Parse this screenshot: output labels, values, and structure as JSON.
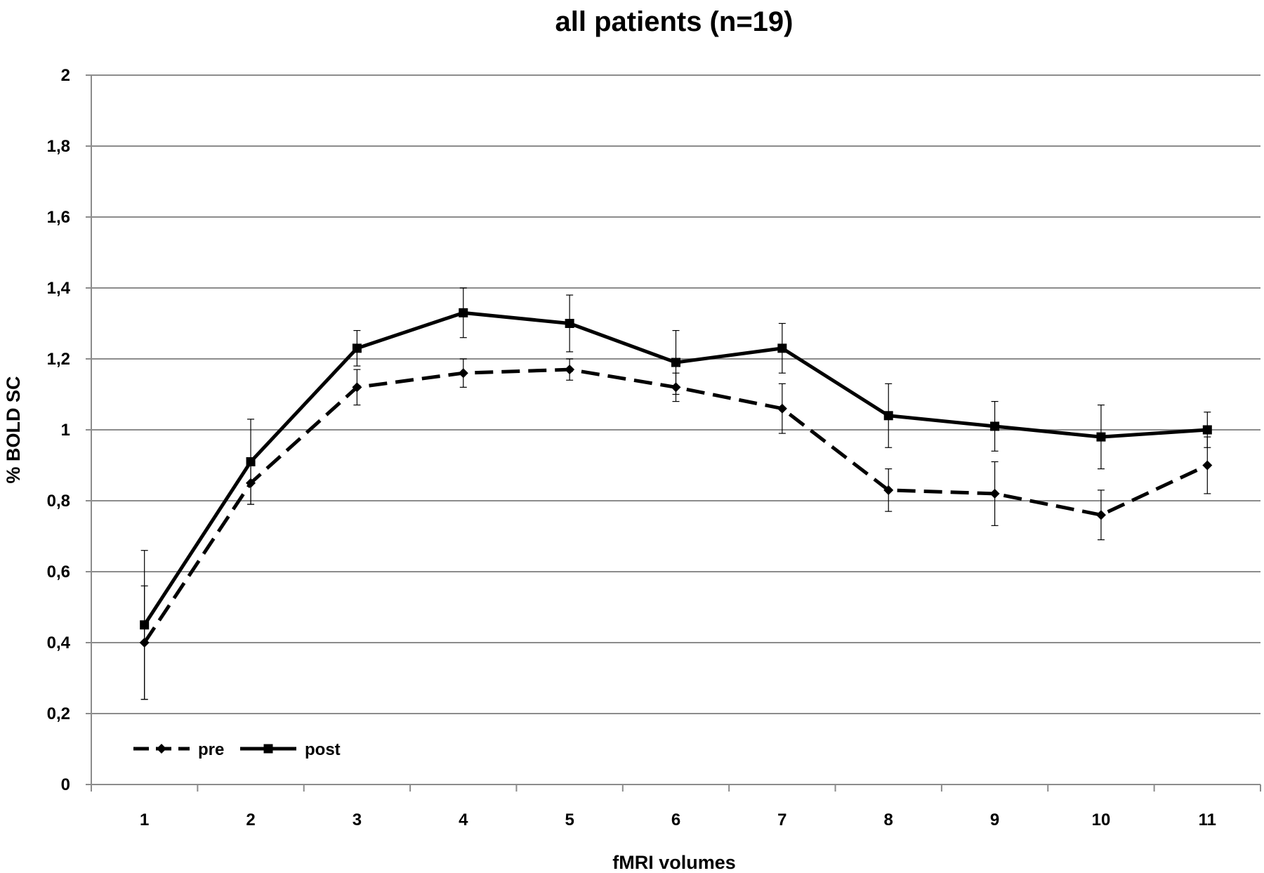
{
  "chart_data": {
    "type": "line",
    "title": "all patients (n=19)",
    "xlabel": "fMRI volumes",
    "ylabel": "% BOLD  SC",
    "categories": [
      "1",
      "2",
      "3",
      "4",
      "5",
      "6",
      "7",
      "8",
      "9",
      "10",
      "11"
    ],
    "ylim": [
      0,
      2
    ],
    "y_ticks": [
      "0",
      "0,2",
      "0,4",
      "0,6",
      "0,8",
      "1",
      "1,2",
      "1,4",
      "1,6",
      "1,8",
      "2"
    ],
    "grid": true,
    "legend_position": "bottom-left",
    "series": [
      {
        "name": "pre",
        "line_style": "dashed",
        "marker": "diamond",
        "color": "#000000",
        "values": [
          0.4,
          0.85,
          1.12,
          1.16,
          1.17,
          1.12,
          1.06,
          0.83,
          0.82,
          0.76,
          0.9
        ],
        "error": [
          0.16,
          0.06,
          0.05,
          0.04,
          0.03,
          0.04,
          0.07,
          0.06,
          0.09,
          0.07,
          0.08
        ]
      },
      {
        "name": "post",
        "line_style": "solid",
        "marker": "square",
        "color": "#000000",
        "values": [
          0.45,
          0.91,
          1.23,
          1.33,
          1.3,
          1.19,
          1.23,
          1.04,
          1.01,
          0.98,
          1.0
        ],
        "error": [
          0.21,
          0.12,
          0.05,
          0.07,
          0.08,
          0.09,
          0.07,
          0.09,
          0.07,
          0.09,
          0.05
        ]
      }
    ]
  }
}
